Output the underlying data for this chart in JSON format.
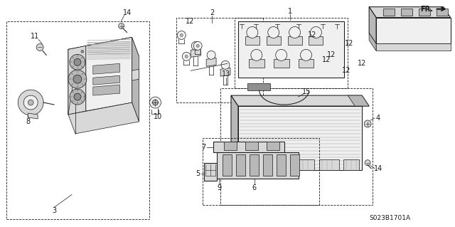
{
  "figsize": [
    6.4,
    3.19
  ],
  "dpi": 100,
  "bg_color": "#ffffff",
  "line_color": "#1a1a1a",
  "diagram_code": "S023B1701A",
  "note_fontsize": 7.0,
  "lw_thin": 0.5,
  "lw_med": 0.75,
  "lw_thick": 1.0,
  "gray1": "#f0f0f0",
  "gray2": "#d8d8d8",
  "gray3": "#b8b8b8",
  "gray4": "#909090",
  "gray5": "#606060"
}
